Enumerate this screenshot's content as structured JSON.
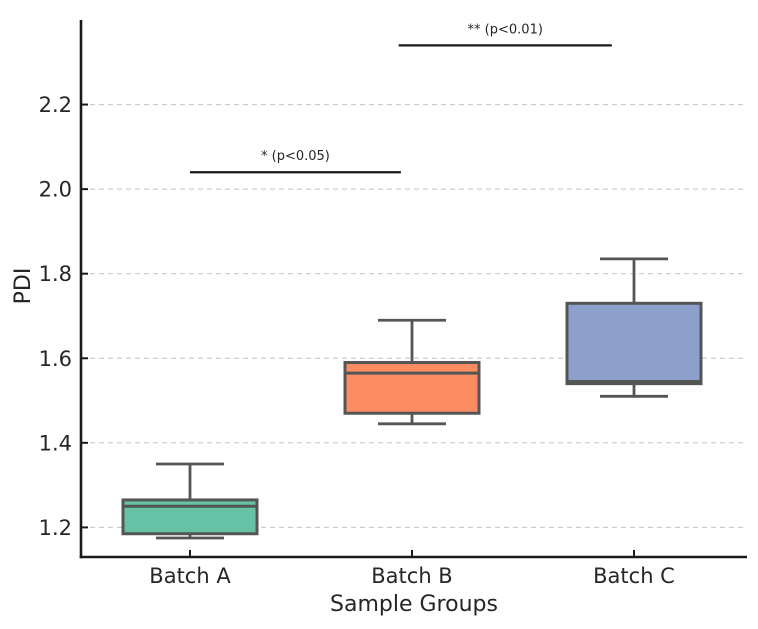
{
  "chart_data": {
    "type": "boxplot",
    "title": "",
    "xlabel": "Sample Groups",
    "ylabel": "PDI",
    "categories": [
      "Batch A",
      "Batch B",
      "Batch C"
    ],
    "ylim": [
      1.13,
      2.4
    ],
    "yticks": [
      1.2,
      1.4,
      1.6,
      1.8,
      2.0,
      2.2
    ],
    "grid": "horizontal-dashed",
    "legend": "none",
    "colors": {
      "grid": "#cccccc",
      "spine": "#1a1a1a",
      "box_edge": "#555555",
      "text": "#262626",
      "significance_line": "#1a1a1a"
    },
    "boxes": [
      {
        "label": "Batch A",
        "color": "#66c2a5",
        "whisker_low": 1.175,
        "q1": 1.185,
        "median": 1.25,
        "q3": 1.265,
        "whisker_high": 1.35
      },
      {
        "label": "Batch B",
        "color": "#fc8d62",
        "whisker_low": 1.445,
        "q1": 1.47,
        "median": 1.565,
        "q3": 1.59,
        "whisker_high": 1.69
      },
      {
        "label": "Batch C",
        "color": "#8da0cb",
        "whisker_low": 1.51,
        "q1": 1.54,
        "median": 1.545,
        "q3": 1.73,
        "whisker_high": 1.835
      }
    ],
    "annotations": [
      {
        "label": "* (p<0.05)",
        "between": [
          0,
          1
        ],
        "y": 2.04
      },
      {
        "label": "** (p<0.01)",
        "between": [
          1,
          2
        ],
        "y": 2.34
      }
    ]
  }
}
